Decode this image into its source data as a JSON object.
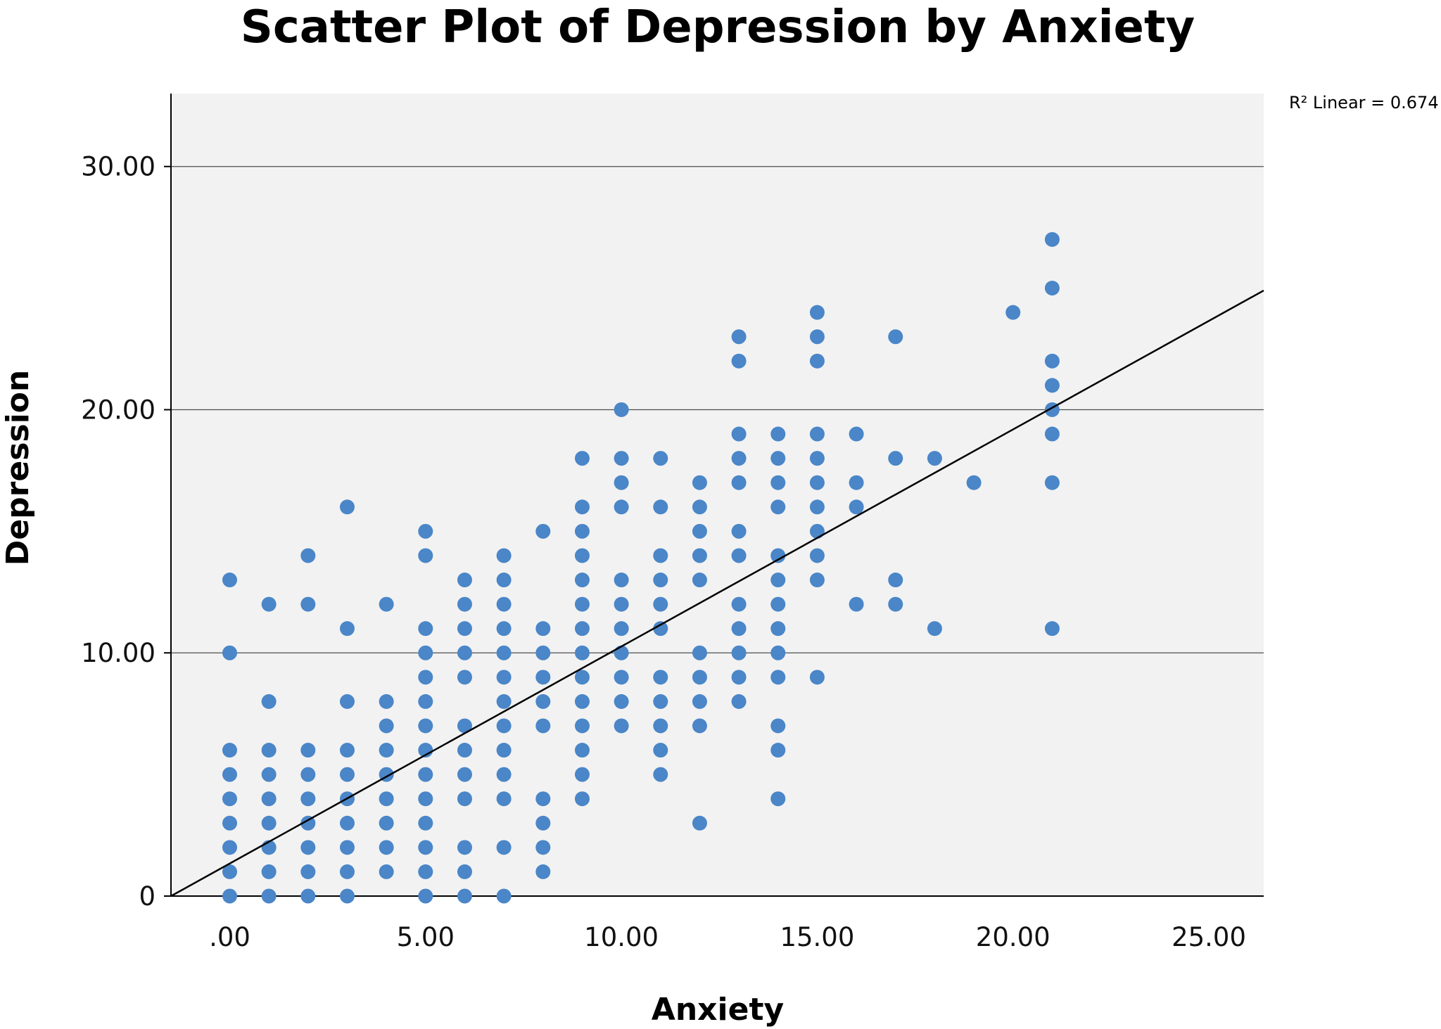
{
  "chart_data": {
    "type": "scatter",
    "title": "Scatter Plot of Depression by Anxiety",
    "xlabel": "Anxiety",
    "ylabel": "Depression",
    "xlim": [
      -1.5,
      26.4
    ],
    "ylim": [
      0,
      33
    ],
    "x_ticks": [
      0,
      5,
      10,
      15,
      20,
      25
    ],
    "x_tick_labels": [
      ".00",
      "5.00",
      "10.00",
      "15.00",
      "20.00",
      "25.00"
    ],
    "y_ticks": [
      0,
      10,
      20,
      30
    ],
    "y_tick_labels": [
      "0",
      "10.00",
      "20.00",
      "30.00"
    ],
    "grid": "horizontal",
    "point_color": "#4a86c8",
    "plot_background": "#f2f2f2",
    "fit_line": {
      "type": "linear",
      "from": [
        -1.5,
        0
      ],
      "to": [
        26.4,
        24.9
      ],
      "label": "R² Linear = 0.674"
    },
    "points": [
      [
        0,
        0
      ],
      [
        0,
        1
      ],
      [
        0,
        2
      ],
      [
        0,
        3
      ],
      [
        0,
        4
      ],
      [
        0,
        5
      ],
      [
        0,
        6
      ],
      [
        0,
        10
      ],
      [
        0,
        13
      ],
      [
        1,
        0
      ],
      [
        1,
        1
      ],
      [
        1,
        2
      ],
      [
        1,
        3
      ],
      [
        1,
        4
      ],
      [
        1,
        5
      ],
      [
        1,
        6
      ],
      [
        1,
        8
      ],
      [
        1,
        12
      ],
      [
        2,
        0
      ],
      [
        2,
        1
      ],
      [
        2,
        2
      ],
      [
        2,
        3
      ],
      [
        2,
        4
      ],
      [
        2,
        5
      ],
      [
        2,
        6
      ],
      [
        2,
        12
      ],
      [
        2,
        14
      ],
      [
        3,
        0
      ],
      [
        3,
        1
      ],
      [
        3,
        2
      ],
      [
        3,
        3
      ],
      [
        3,
        4
      ],
      [
        3,
        5
      ],
      [
        3,
        6
      ],
      [
        3,
        8
      ],
      [
        3,
        11
      ],
      [
        3,
        16
      ],
      [
        4,
        1
      ],
      [
        4,
        2
      ],
      [
        4,
        3
      ],
      [
        4,
        4
      ],
      [
        4,
        5
      ],
      [
        4,
        6
      ],
      [
        4,
        7
      ],
      [
        4,
        8
      ],
      [
        4,
        12
      ],
      [
        5,
        0
      ],
      [
        5,
        1
      ],
      [
        5,
        2
      ],
      [
        5,
        3
      ],
      [
        5,
        4
      ],
      [
        5,
        5
      ],
      [
        5,
        6
      ],
      [
        5,
        7
      ],
      [
        5,
        8
      ],
      [
        5,
        9
      ],
      [
        5,
        10
      ],
      [
        5,
        11
      ],
      [
        5,
        14
      ],
      [
        5,
        15
      ],
      [
        6,
        0
      ],
      [
        6,
        1
      ],
      [
        6,
        2
      ],
      [
        6,
        4
      ],
      [
        6,
        5
      ],
      [
        6,
        6
      ],
      [
        6,
        7
      ],
      [
        6,
        9
      ],
      [
        6,
        10
      ],
      [
        6,
        11
      ],
      [
        6,
        12
      ],
      [
        6,
        13
      ],
      [
        7,
        0
      ],
      [
        7,
        2
      ],
      [
        7,
        4
      ],
      [
        7,
        5
      ],
      [
        7,
        6
      ],
      [
        7,
        7
      ],
      [
        7,
        8
      ],
      [
        7,
        9
      ],
      [
        7,
        10
      ],
      [
        7,
        11
      ],
      [
        7,
        12
      ],
      [
        7,
        13
      ],
      [
        7,
        14
      ],
      [
        8,
        1
      ],
      [
        8,
        2
      ],
      [
        8,
        3
      ],
      [
        8,
        4
      ],
      [
        8,
        7
      ],
      [
        8,
        8
      ],
      [
        8,
        9
      ],
      [
        8,
        10
      ],
      [
        8,
        11
      ],
      [
        8,
        15
      ],
      [
        9,
        4
      ],
      [
        9,
        5
      ],
      [
        9,
        6
      ],
      [
        9,
        7
      ],
      [
        9,
        8
      ],
      [
        9,
        9
      ],
      [
        9,
        10
      ],
      [
        9,
        11
      ],
      [
        9,
        12
      ],
      [
        9,
        13
      ],
      [
        9,
        14
      ],
      [
        9,
        15
      ],
      [
        9,
        16
      ],
      [
        9,
        18
      ],
      [
        10,
        7
      ],
      [
        10,
        8
      ],
      [
        10,
        9
      ],
      [
        10,
        10
      ],
      [
        10,
        11
      ],
      [
        10,
        12
      ],
      [
        10,
        13
      ],
      [
        10,
        16
      ],
      [
        10,
        17
      ],
      [
        10,
        18
      ],
      [
        10,
        20
      ],
      [
        11,
        5
      ],
      [
        11,
        6
      ],
      [
        11,
        7
      ],
      [
        11,
        8
      ],
      [
        11,
        9
      ],
      [
        11,
        11
      ],
      [
        11,
        12
      ],
      [
        11,
        13
      ],
      [
        11,
        14
      ],
      [
        11,
        16
      ],
      [
        11,
        18
      ],
      [
        12,
        3
      ],
      [
        12,
        7
      ],
      [
        12,
        8
      ],
      [
        12,
        9
      ],
      [
        12,
        10
      ],
      [
        12,
        13
      ],
      [
        12,
        14
      ],
      [
        12,
        15
      ],
      [
        12,
        16
      ],
      [
        12,
        17
      ],
      [
        13,
        8
      ],
      [
        13,
        9
      ],
      [
        13,
        10
      ],
      [
        13,
        11
      ],
      [
        13,
        12
      ],
      [
        13,
        14
      ],
      [
        13,
        15
      ],
      [
        13,
        17
      ],
      [
        13,
        18
      ],
      [
        13,
        19
      ],
      [
        13,
        22
      ],
      [
        13,
        23
      ],
      [
        14,
        4
      ],
      [
        14,
        6
      ],
      [
        14,
        7
      ],
      [
        14,
        9
      ],
      [
        14,
        10
      ],
      [
        14,
        11
      ],
      [
        14,
        12
      ],
      [
        14,
        13
      ],
      [
        14,
        14
      ],
      [
        14,
        16
      ],
      [
        14,
        17
      ],
      [
        14,
        18
      ],
      [
        14,
        19
      ],
      [
        15,
        9
      ],
      [
        15,
        13
      ],
      [
        15,
        14
      ],
      [
        15,
        15
      ],
      [
        15,
        16
      ],
      [
        15,
        17
      ],
      [
        15,
        18
      ],
      [
        15,
        19
      ],
      [
        15,
        22
      ],
      [
        15,
        23
      ],
      [
        15,
        24
      ],
      [
        16,
        12
      ],
      [
        16,
        16
      ],
      [
        16,
        17
      ],
      [
        16,
        19
      ],
      [
        17,
        12
      ],
      [
        17,
        13
      ],
      [
        17,
        18
      ],
      [
        17,
        23
      ],
      [
        18,
        11
      ],
      [
        18,
        18
      ],
      [
        19,
        17
      ],
      [
        20,
        24
      ],
      [
        21,
        11
      ],
      [
        21,
        17
      ],
      [
        21,
        19
      ],
      [
        21,
        20
      ],
      [
        21,
        21
      ],
      [
        21,
        22
      ],
      [
        21,
        25
      ],
      [
        21,
        27
      ]
    ]
  }
}
